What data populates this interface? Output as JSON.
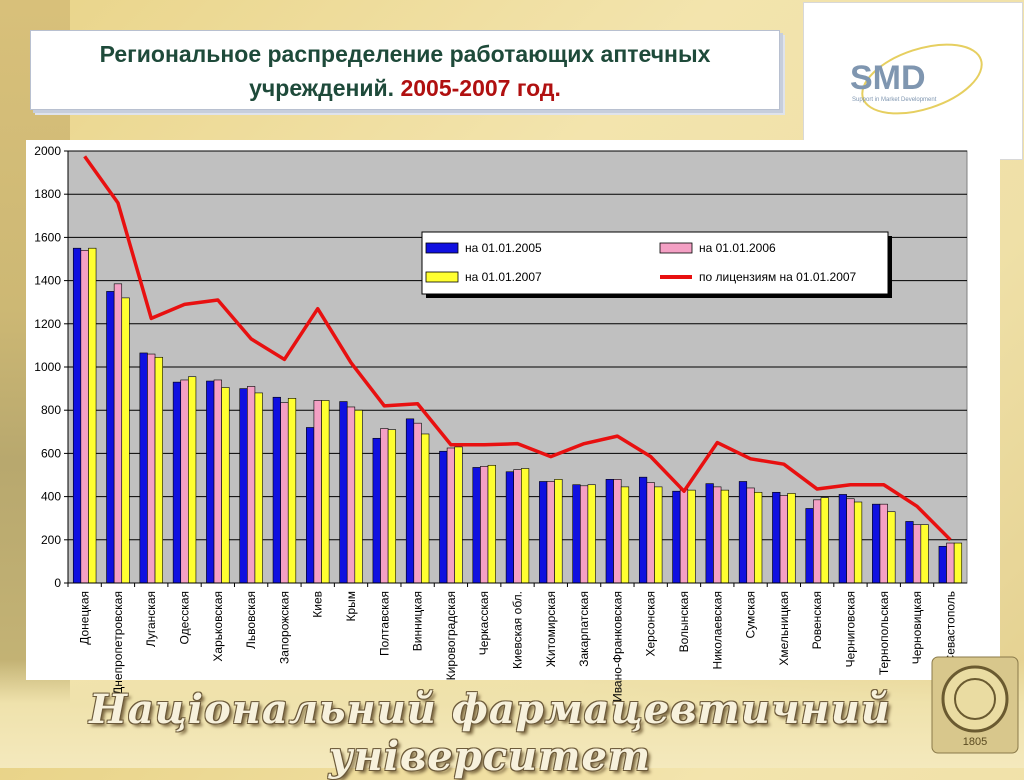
{
  "title": {
    "line1": "Региональное распределение работающих аптечных",
    "line2_prefix": "учреждений.",
    "line2_year": "2005-2007 год."
  },
  "logo": {
    "text": "SMD",
    "tagline": "Support in Market Development"
  },
  "footer": {
    "text": "Національний фармацевтичний університет"
  },
  "seal": {
    "year_text": "1805"
  },
  "colors": {
    "series_2005": "#1010e0",
    "series_2006": "#f4a0c4",
    "series_2007": "#ffff30",
    "licenses_line": "#e81010",
    "plot_bg": "#c0c0c0"
  },
  "chart_data": {
    "type": "bar",
    "ylim": [
      0,
      2000
    ],
    "yticks": [
      0,
      200,
      400,
      600,
      800,
      1000,
      1200,
      1400,
      1600,
      1800,
      2000
    ],
    "grid": true,
    "legend_position": "top-right",
    "categories": [
      "Донецкая",
      "Днепропетровская",
      "Луганская",
      "Одесская",
      "Харьковская",
      "Львовская",
      "Запорожская",
      "Киев",
      "Крым",
      "Полтавская",
      "Винницкая",
      "Кировоградская",
      "Черкасская",
      "Киевская обл.",
      "Житомирская",
      "Закарпатская",
      "Ивано-Франковская",
      "Херсонская",
      "Волынская",
      "Николаевская",
      "Сумская",
      "Хмельницкая",
      "Ровенская",
      "Черниговская",
      "Тернопольская",
      "Черновицкая",
      "Севастополь"
    ],
    "series": [
      {
        "name": "на 01.01.2005",
        "kind": "bar",
        "color": "#1010e0",
        "values": [
          1550,
          1350,
          1065,
          930,
          935,
          900,
          860,
          720,
          840,
          670,
          760,
          610,
          535,
          515,
          470,
          455,
          480,
          490,
          425,
          460,
          470,
          420,
          345,
          410,
          365,
          285,
          170
        ]
      },
      {
        "name": "на 01.01.2006",
        "kind": "bar",
        "color": "#f4a0c4",
        "values": [
          1540,
          1385,
          1060,
          940,
          940,
          910,
          835,
          845,
          815,
          715,
          740,
          625,
          540,
          525,
          470,
          450,
          480,
          465,
          435,
          445,
          440,
          405,
          385,
          390,
          365,
          270,
          185
        ]
      },
      {
        "name": "на 01.01.2007",
        "kind": "bar",
        "color": "#ffff30",
        "values": [
          1550,
          1320,
          1045,
          955,
          905,
          880,
          855,
          845,
          800,
          710,
          690,
          630,
          545,
          530,
          480,
          455,
          445,
          445,
          430,
          430,
          420,
          415,
          395,
          375,
          330,
          270,
          185
        ]
      },
      {
        "name": "по лицензиям на 01.01.2007",
        "kind": "line",
        "color": "#e81010",
        "values": [
          1975,
          1760,
          1225,
          1290,
          1310,
          1130,
          1035,
          1270,
          1020,
          820,
          830,
          640,
          640,
          645,
          585,
          645,
          680,
          585,
          425,
          650,
          575,
          550,
          435,
          455,
          455,
          355,
          200
        ]
      }
    ]
  }
}
